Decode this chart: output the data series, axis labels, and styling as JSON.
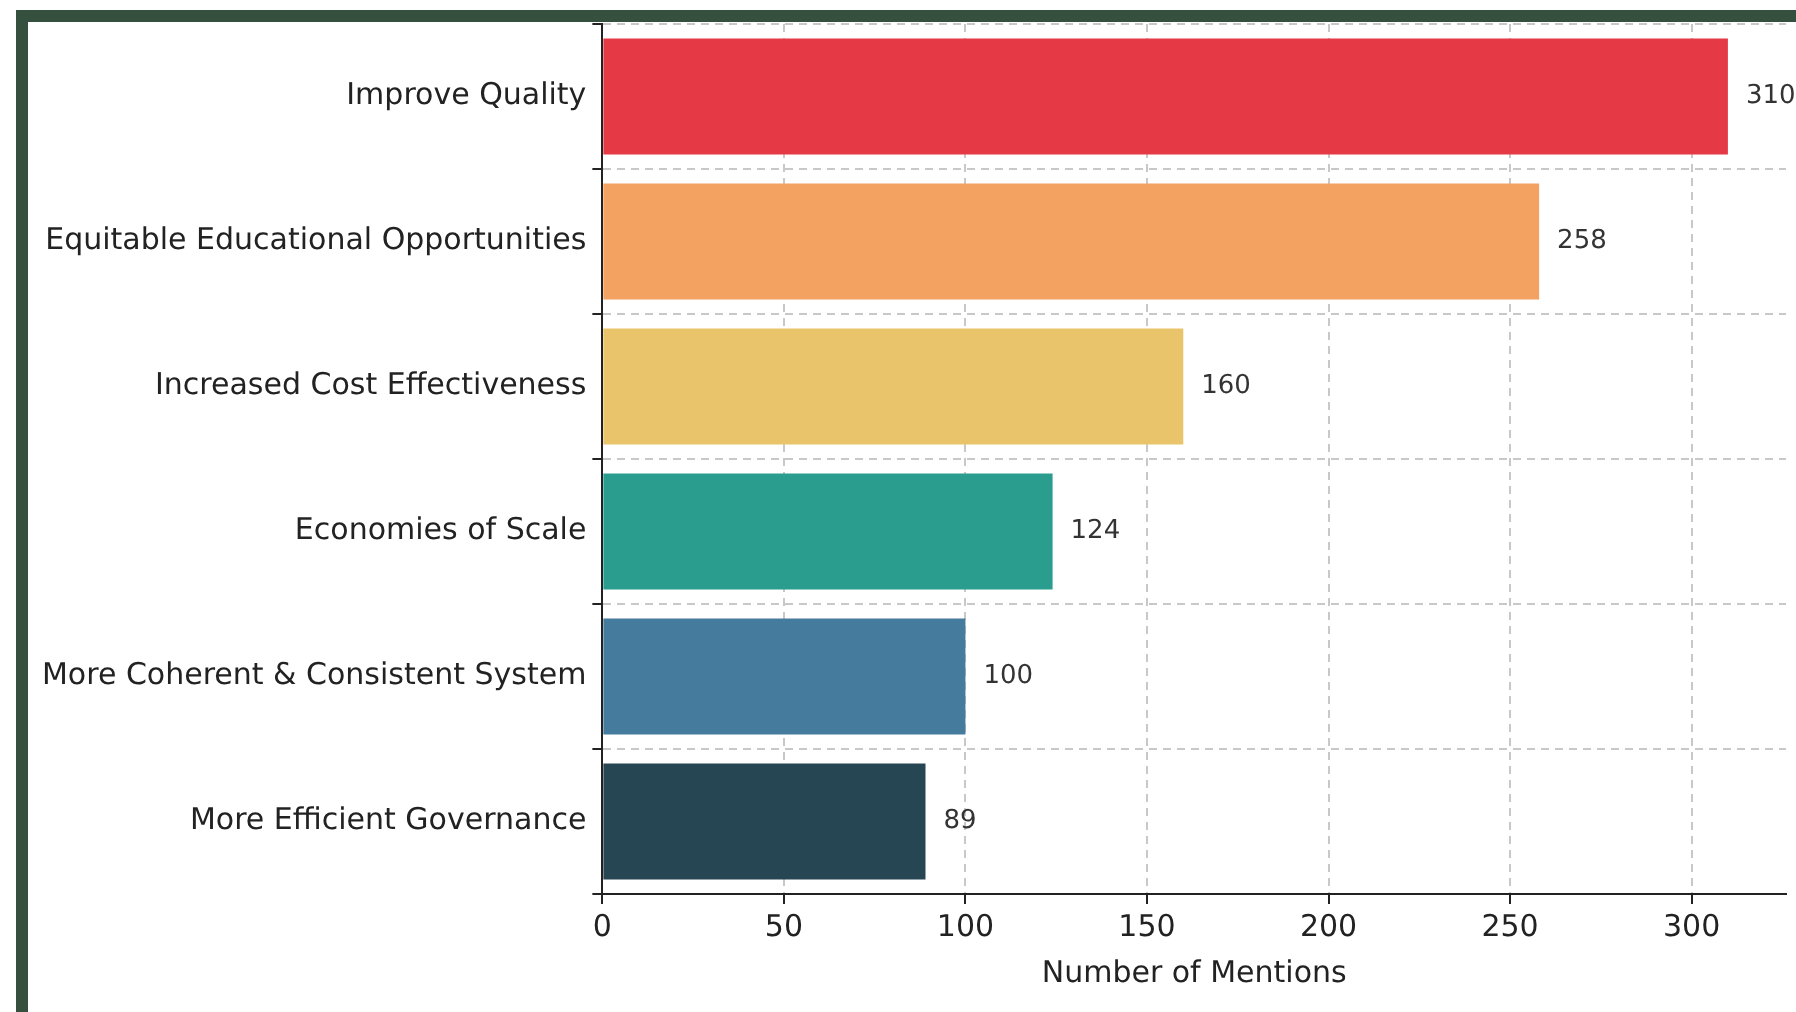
{
  "chart_data": {
    "type": "bar",
    "orientation": "horizontal",
    "xlabel": "Number of Mentions",
    "categories": [
      "Improve Quality",
      "Equitable Educational Opportunities",
      "Increased Cost Effectiveness",
      "Economies of Scale",
      "More Coherent & Consistent System",
      "More Efficient Governance"
    ],
    "values": [
      310,
      258,
      160,
      124,
      100,
      89
    ],
    "colors": [
      "#e63946",
      "#f4a261",
      "#e9c46a",
      "#2a9d8f",
      "#457b9d",
      "#264653"
    ],
    "xlim": [
      0,
      326
    ],
    "xticks": [
      0,
      50,
      100,
      150,
      200,
      250,
      300
    ],
    "grid": true,
    "legend": false,
    "data_labels": true
  }
}
